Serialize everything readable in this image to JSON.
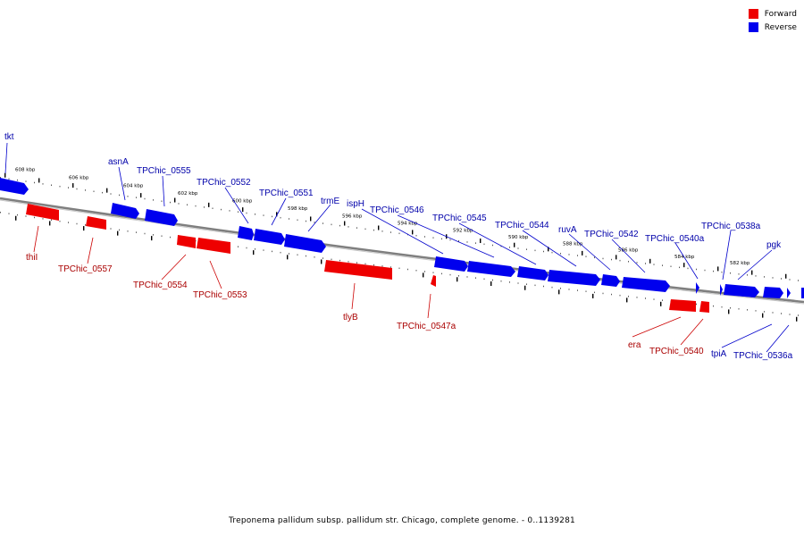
{
  "colors": {
    "forward": "#ee0000",
    "reverse": "#0000ee",
    "backbone": "#888888",
    "tick": "#000000"
  },
  "legend": {
    "forward": "Forward",
    "reverse": "Reverse"
  },
  "caption": "Treponema pallidum subsp. pallidum str. Chicago, complete genome. - 0..1139281",
  "scale_labels": [
    "608 kbp",
    "606 kbp",
    "604 kbp",
    "602 kbp",
    "600 kbp",
    "598 kbp",
    "596 kbp",
    "594 kbp",
    "592 kbp",
    "590 kbp",
    "588 kbp",
    "586 kbp",
    "584 kbp",
    "582 kbp"
  ],
  "reverse_genes": [
    "tkt",
    "asnA",
    "TPChic_0555",
    "TPChic_0552",
    "TPChic_0551",
    "trmE",
    "ispH",
    "TPChic_0546",
    "TPChic_0545",
    "TPChic_0544",
    "ruvA",
    "TPChic_0542",
    "TPChic_0540a",
    "TPChic_0538a",
    "pgk",
    "tpiA",
    "TPChic_0536a"
  ],
  "forward_genes": [
    "thiI",
    "TPChic_0557",
    "TPChic_0554",
    "TPChic_0553",
    "tlyB",
    "TPChic_0547a",
    "era",
    "TPChic_0540"
  ]
}
